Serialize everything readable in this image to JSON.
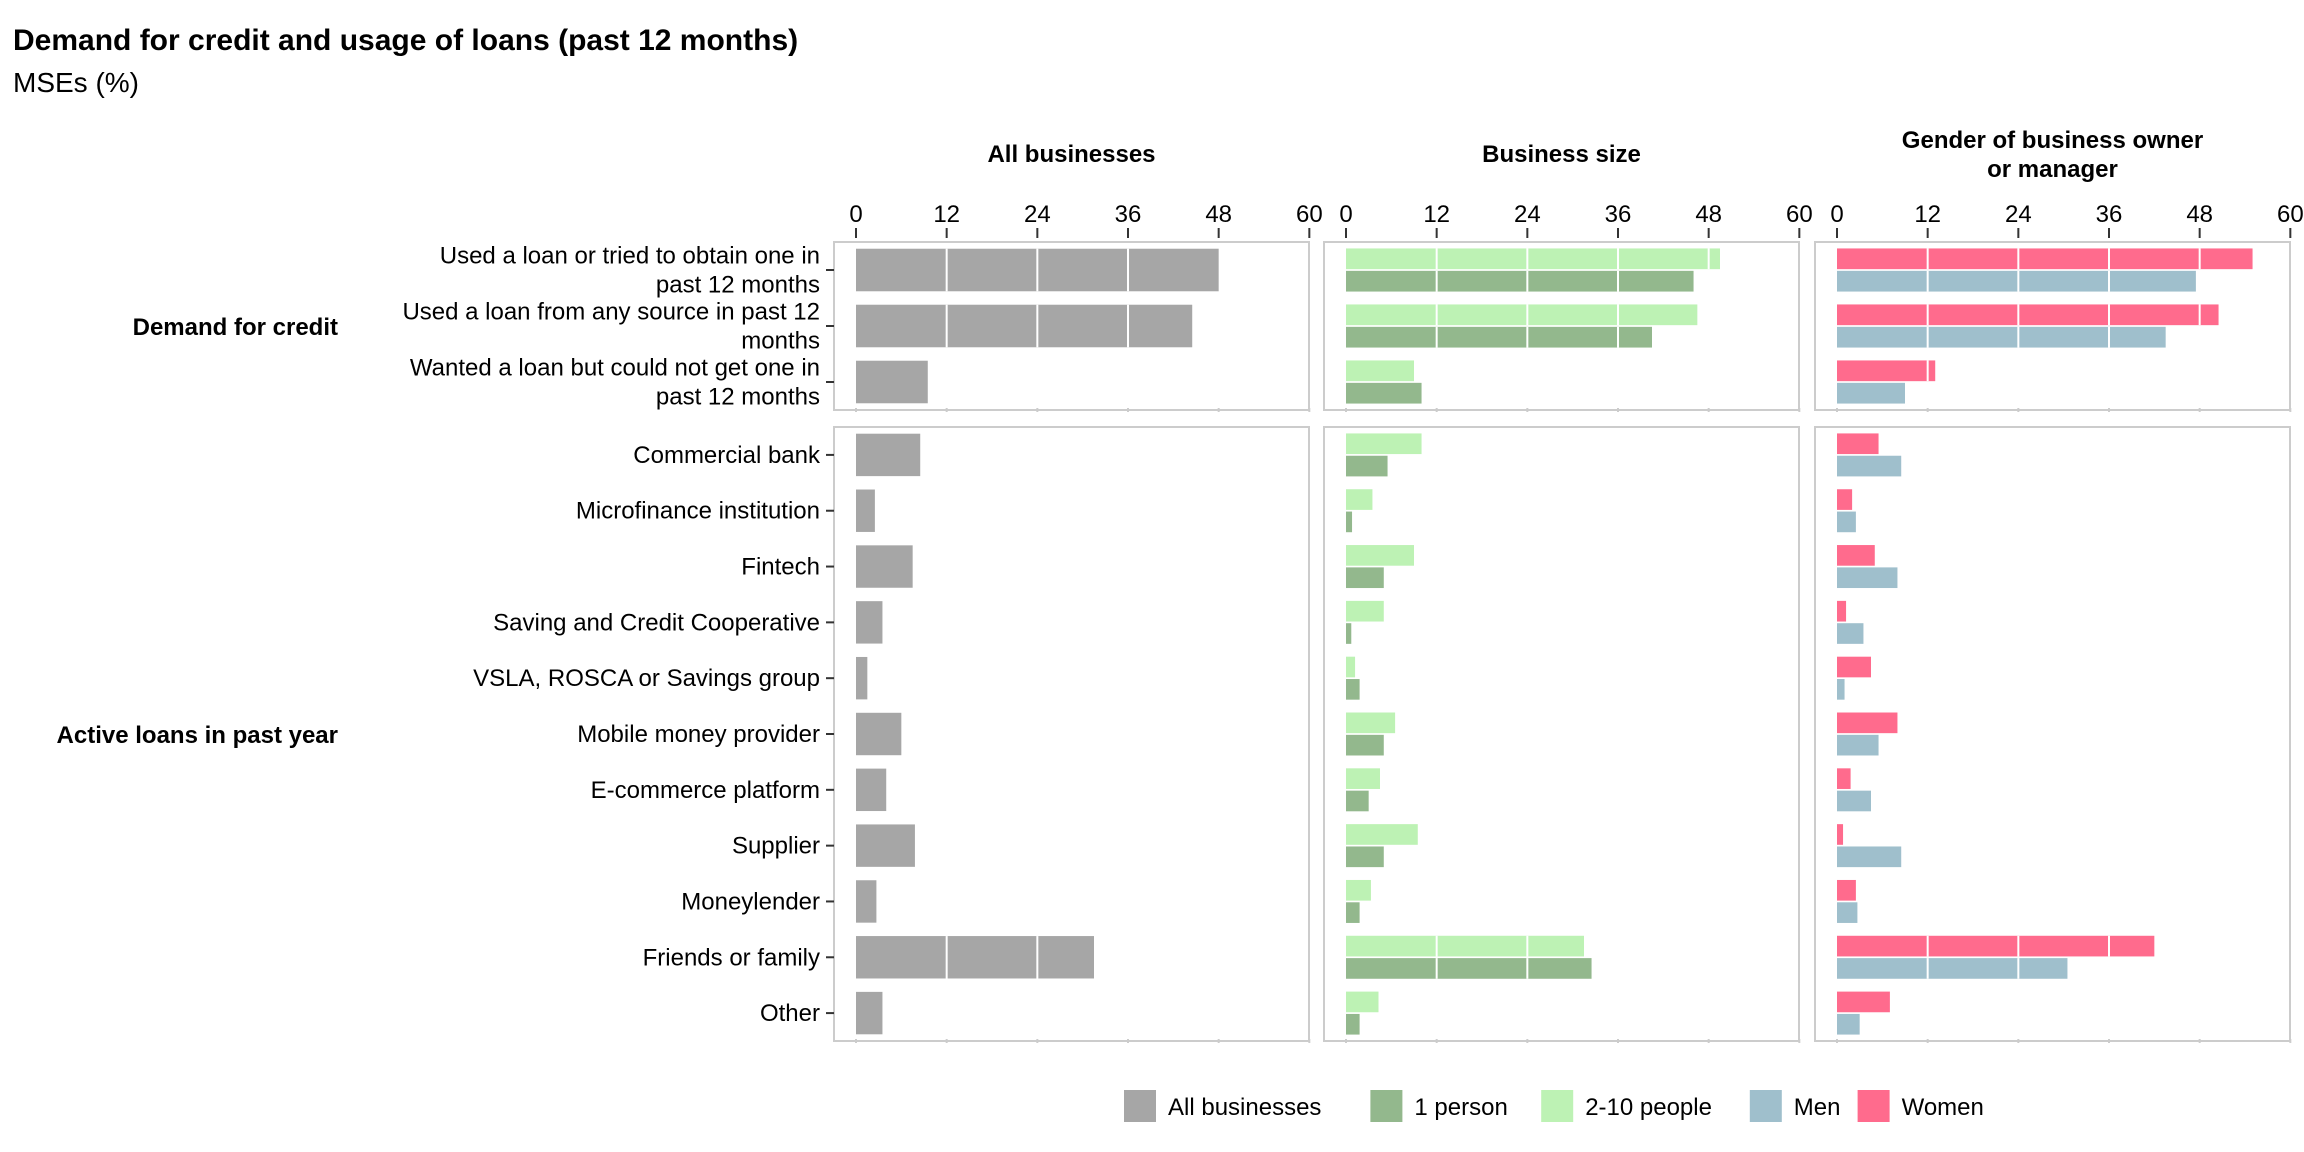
{
  "title": "Demand for credit and usage of loans (past 12 months)",
  "subtitle": "MSEs (%)",
  "chart_data": {
    "type": "bar",
    "orientation": "horizontal",
    "xlim": [
      0,
      63
    ],
    "ticks": [
      0,
      12,
      24,
      36,
      48,
      60
    ],
    "tick_labels": [
      "0",
      "12",
      "24",
      "36",
      "48",
      "60"
    ],
    "grid": false,
    "legend_position": "bottom",
    "colors": {
      "All businesses": "#a6a6a6",
      "1 person": "#93b88d",
      "2-10 people": "#bdf2b4",
      "Men": "#9fbfcc",
      "Women": "#ff6b8d"
    },
    "legend": [
      {
        "key": "All businesses",
        "label": "All businesses"
      },
      {
        "key": "1 person",
        "label": "1 person"
      },
      {
        "key": "2-10 people",
        "label": "2-10 people"
      },
      {
        "key": "Men",
        "label": "Men"
      },
      {
        "key": "Women",
        "label": "Women"
      }
    ],
    "facets": [
      {
        "title": [
          "All businesses"
        ],
        "series": [
          "All businesses"
        ]
      },
      {
        "title": [
          "Business size"
        ],
        "series": [
          "2-10 people",
          "1 person"
        ]
      },
      {
        "title": [
          "Gender of business owner",
          "or manager"
        ],
        "series": [
          "Women",
          "Men"
        ]
      }
    ],
    "groups": [
      {
        "label": "Demand for credit",
        "categories": [
          {
            "label": [
              "Used a loan or tried to obtain one in",
              "past 12 months"
            ],
            "values": {
              "All businesses": 48,
              "2-10 people": 49.5,
              "1 person": 46,
              "Women": 55,
              "Men": 47.5
            }
          },
          {
            "label": [
              "Used a loan from any source in past 12",
              "months"
            ],
            "values": {
              "All businesses": 44.5,
              "2-10 people": 46.5,
              "1 person": 40.5,
              "Women": 50.5,
              "Men": 43.5
            }
          },
          {
            "label": [
              "Wanted a loan but could not get one in",
              "past 12 months"
            ],
            "values": {
              "All businesses": 9.5,
              "2-10 people": 9,
              "1 person": 10,
              "Women": 13,
              "Men": 9
            }
          }
        ]
      },
      {
        "label": "Active loans in past year",
        "categories": [
          {
            "label": [
              "Commercial bank"
            ],
            "values": {
              "All businesses": 8.5,
              "2-10 people": 10,
              "1 person": 5.5,
              "Women": 5.5,
              "Men": 8.5
            }
          },
          {
            "label": [
              "Microfinance institution"
            ],
            "values": {
              "All businesses": 2.5,
              "2-10 people": 3.5,
              "1 person": 0.8,
              "Women": 2,
              "Men": 2.5
            }
          },
          {
            "label": [
              "Fintech"
            ],
            "values": {
              "All businesses": 7.5,
              "2-10 people": 9,
              "1 person": 5,
              "Women": 5,
              "Men": 8
            }
          },
          {
            "label": [
              "Saving and Credit Cooperative"
            ],
            "values": {
              "All businesses": 3.5,
              "2-10 people": 5,
              "1 person": 0.7,
              "Women": 1.2,
              "Men": 3.5
            }
          },
          {
            "label": [
              "VSLA, ROSCA or Savings group"
            ],
            "values": {
              "All businesses": 1.5,
              "2-10 people": 1.2,
              "1 person": 1.8,
              "Women": 4.5,
              "Men": 1
            }
          },
          {
            "label": [
              "Mobile money provider"
            ],
            "values": {
              "All businesses": 6,
              "2-10 people": 6.5,
              "1 person": 5,
              "Women": 8,
              "Men": 5.5
            }
          },
          {
            "label": [
              "E-commerce platform"
            ],
            "values": {
              "All businesses": 4,
              "2-10 people": 4.5,
              "1 person": 3,
              "Women": 1.8,
              "Men": 4.5
            }
          },
          {
            "label": [
              "Supplier"
            ],
            "values": {
              "All businesses": 7.8,
              "2-10 people": 9.5,
              "1 person": 5,
              "Women": 0.8,
              "Men": 8.5
            }
          },
          {
            "label": [
              "Moneylender"
            ],
            "values": {
              "All businesses": 2.7,
              "2-10 people": 3.3,
              "1 person": 1.8,
              "Women": 2.5,
              "Men": 2.7
            }
          },
          {
            "label": [
              "Friends or family"
            ],
            "values": {
              "All businesses": 31.5,
              "2-10 people": 31.5,
              "1 person": 32.5,
              "Women": 42,
              "Men": 30.5
            }
          },
          {
            "label": [
              "Other"
            ],
            "values": {
              "All businesses": 3.5,
              "2-10 people": 4.3,
              "1 person": 1.8,
              "Women": 7,
              "Men": 3
            }
          }
        ]
      }
    ]
  }
}
